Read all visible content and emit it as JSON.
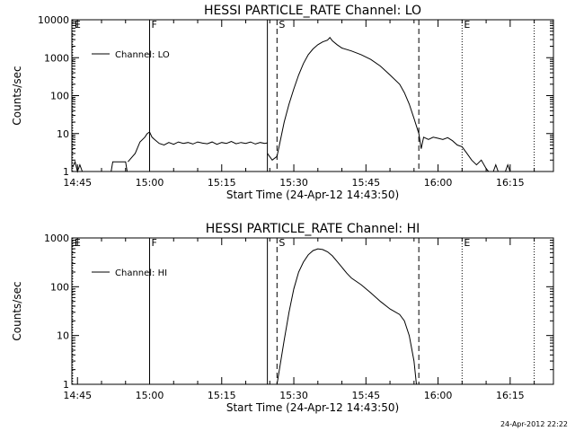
{
  "stamp": "24-Apr-2012 22:22",
  "chart_data": [
    {
      "type": "line",
      "title": "HESSI PARTICLE_RATE Channel: LO",
      "xlabel": "Start Time (24-Apr-12 14:43:50)",
      "ylabel": "Counts/sec",
      "yscale": "log",
      "xlim": [
        "14:43:50",
        "16:24:00"
      ],
      "ylim": [
        1,
        10000
      ],
      "xticks": [
        "14:45",
        "15:00",
        "15:15",
        "15:30",
        "15:45",
        "16:00",
        "16:15"
      ],
      "yticks": [
        "1",
        "10",
        "100",
        "1000",
        "10000"
      ],
      "legend": {
        "entries": [
          "Channel: LO"
        ],
        "position": "top-left"
      },
      "markers": [
        {
          "time": "14:44:00",
          "label": "E",
          "style": "dotted"
        },
        {
          "time": "15:00:00",
          "label": "F",
          "style": "solid"
        },
        {
          "time": "15:24:30",
          "label": "",
          "style": "solid"
        },
        {
          "time": "15:26:30",
          "label": "S",
          "style": "dashed"
        },
        {
          "time": "15:56:00",
          "label": "",
          "style": "dashed"
        },
        {
          "time": "16:05:00",
          "label": "E",
          "style": "dotted"
        },
        {
          "time": "16:20:00",
          "label": "",
          "style": "dotted"
        }
      ],
      "series": [
        {
          "name": "Channel: LO",
          "segments": [
            {
              "x": [
                "14:44:00",
                "14:44:30",
                "14:45:00",
                "14:45:30",
                "14:46:00"
              ],
              "y": [
                1.3,
                1.8,
                1,
                1.5,
                1
              ]
            },
            {
              "x": [
                "14:52:00",
                "14:52:20",
                "14:55:00",
                "14:55:20"
              ],
              "y": [
                1,
                1.8,
                1.8,
                1
              ]
            },
            {
              "x": [
                "14:55:30",
                "14:57:00",
                "14:58:00",
                "14:59:00",
                "14:59:30",
                "15:00:00",
                "15:00:30",
                "15:01:00",
                "15:02:00",
                "15:03:00",
                "15:04:00",
                "15:05:00",
                "15:06:00",
                "15:07:00",
                "15:08:00",
                "15:09:00",
                "15:10:00",
                "15:11:00",
                "15:12:00",
                "15:13:00",
                "15:14:00",
                "15:15:00",
                "15:16:00",
                "15:17:00",
                "15:18:00",
                "15:19:00",
                "15:20:00",
                "15:21:00",
                "15:22:00",
                "15:23:00",
                "15:24:00",
                "15:24:30"
              ],
              "y": [
                1.8,
                3,
                6,
                8,
                10,
                11,
                8,
                7,
                5.5,
                5,
                5.8,
                5.2,
                6,
                5.5,
                5.8,
                5.3,
                6,
                5.6,
                5.4,
                6,
                5.2,
                5.8,
                5.5,
                6.2,
                5.4,
                5.8,
                5.5,
                6,
                5.3,
                5.8,
                5.5,
                5.7
              ]
            },
            {
              "x": [
                "15:24:30",
                "15:25:30",
                "15:26:30",
                "15:27:00",
                "15:28:00",
                "15:29:00",
                "15:30:00",
                "15:31:00",
                "15:32:00",
                "15:33:00",
                "15:34:00",
                "15:35:00",
                "15:36:00",
                "15:37:00",
                "15:37:30",
                "15:38:00",
                "15:39:00",
                "15:40:00",
                "15:42:00",
                "15:44:00",
                "15:46:00",
                "15:48:00",
                "15:50:00",
                "15:52:00",
                "15:53:00",
                "15:54:00",
                "15:55:00",
                "15:56:00",
                "15:56:30"
              ],
              "y": [
                3,
                2,
                2.5,
                5,
                20,
                60,
                150,
                350,
                700,
                1200,
                1700,
                2200,
                2600,
                2900,
                3400,
                2800,
                2200,
                1800,
                1500,
                1200,
                900,
                600,
                350,
                200,
                120,
                60,
                25,
                10,
                4
              ]
            },
            {
              "x": [
                "15:56:30",
                "15:57:00",
                "15:58:00",
                "15:59:00",
                "16:00:00",
                "16:01:00",
                "16:02:00",
                "16:03:00",
                "16:04:00",
                "16:05:00",
                "16:06:00",
                "16:07:00",
                "16:08:00",
                "16:09:00",
                "16:10:00",
                "16:10:30"
              ],
              "y": [
                4,
                8,
                7,
                8,
                7.5,
                7,
                7.8,
                6.5,
                5,
                4.5,
                3,
                2,
                1.5,
                2,
                1.2,
                1
              ]
            },
            {
              "x": [
                "16:11:30",
                "16:12:00",
                "16:12:30",
                "16:14:00",
                "16:14:30",
                "16:15:00"
              ],
              "y": [
                1,
                1.5,
                1,
                1,
                1.5,
                1
              ]
            }
          ]
        }
      ]
    },
    {
      "type": "line",
      "title": "HESSI PARTICLE_RATE Channel: HI",
      "xlabel": "Start Time (24-Apr-12 14:43:50)",
      "ylabel": "Counts/sec",
      "yscale": "log",
      "xlim": [
        "14:43:50",
        "16:24:00"
      ],
      "ylim": [
        1,
        1000
      ],
      "xticks": [
        "14:45",
        "15:00",
        "15:15",
        "15:30",
        "15:45",
        "16:00",
        "16:15"
      ],
      "yticks": [
        "1",
        "10",
        "100",
        "1000"
      ],
      "legend": {
        "entries": [
          "Channel: HI"
        ],
        "position": "top-left"
      },
      "markers": [
        {
          "time": "14:44:00",
          "label": "E",
          "style": "dotted"
        },
        {
          "time": "15:00:00",
          "label": "F",
          "style": "solid"
        },
        {
          "time": "15:24:30",
          "label": "",
          "style": "solid"
        },
        {
          "time": "15:26:30",
          "label": "S",
          "style": "dashed"
        },
        {
          "time": "15:56:00",
          "label": "",
          "style": "dashed"
        },
        {
          "time": "16:05:00",
          "label": "E",
          "style": "dotted"
        },
        {
          "time": "16:20:00",
          "label": "",
          "style": "dotted"
        }
      ],
      "series": [
        {
          "name": "Channel: HI",
          "segments": [
            {
              "x": [
                "15:26:30",
                "15:27:00",
                "15:28:00",
                "15:29:00",
                "15:30:00",
                "15:31:00",
                "15:32:00",
                "15:33:00",
                "15:34:00",
                "15:35:00",
                "15:36:00",
                "15:37:00",
                "15:38:00",
                "15:39:00",
                "15:40:00",
                "15:41:00",
                "15:42:00",
                "15:44:00",
                "15:46:00",
                "15:48:00",
                "15:50:00",
                "15:52:00",
                "15:53:00",
                "15:54:00",
                "15:55:00",
                "15:55:30"
              ],
              "y": [
                1,
                2,
                8,
                30,
                90,
                200,
                320,
                450,
                550,
                600,
                580,
                520,
                430,
                330,
                250,
                190,
                150,
                110,
                75,
                50,
                35,
                27,
                20,
                10,
                3,
                1
              ]
            }
          ]
        }
      ]
    }
  ]
}
